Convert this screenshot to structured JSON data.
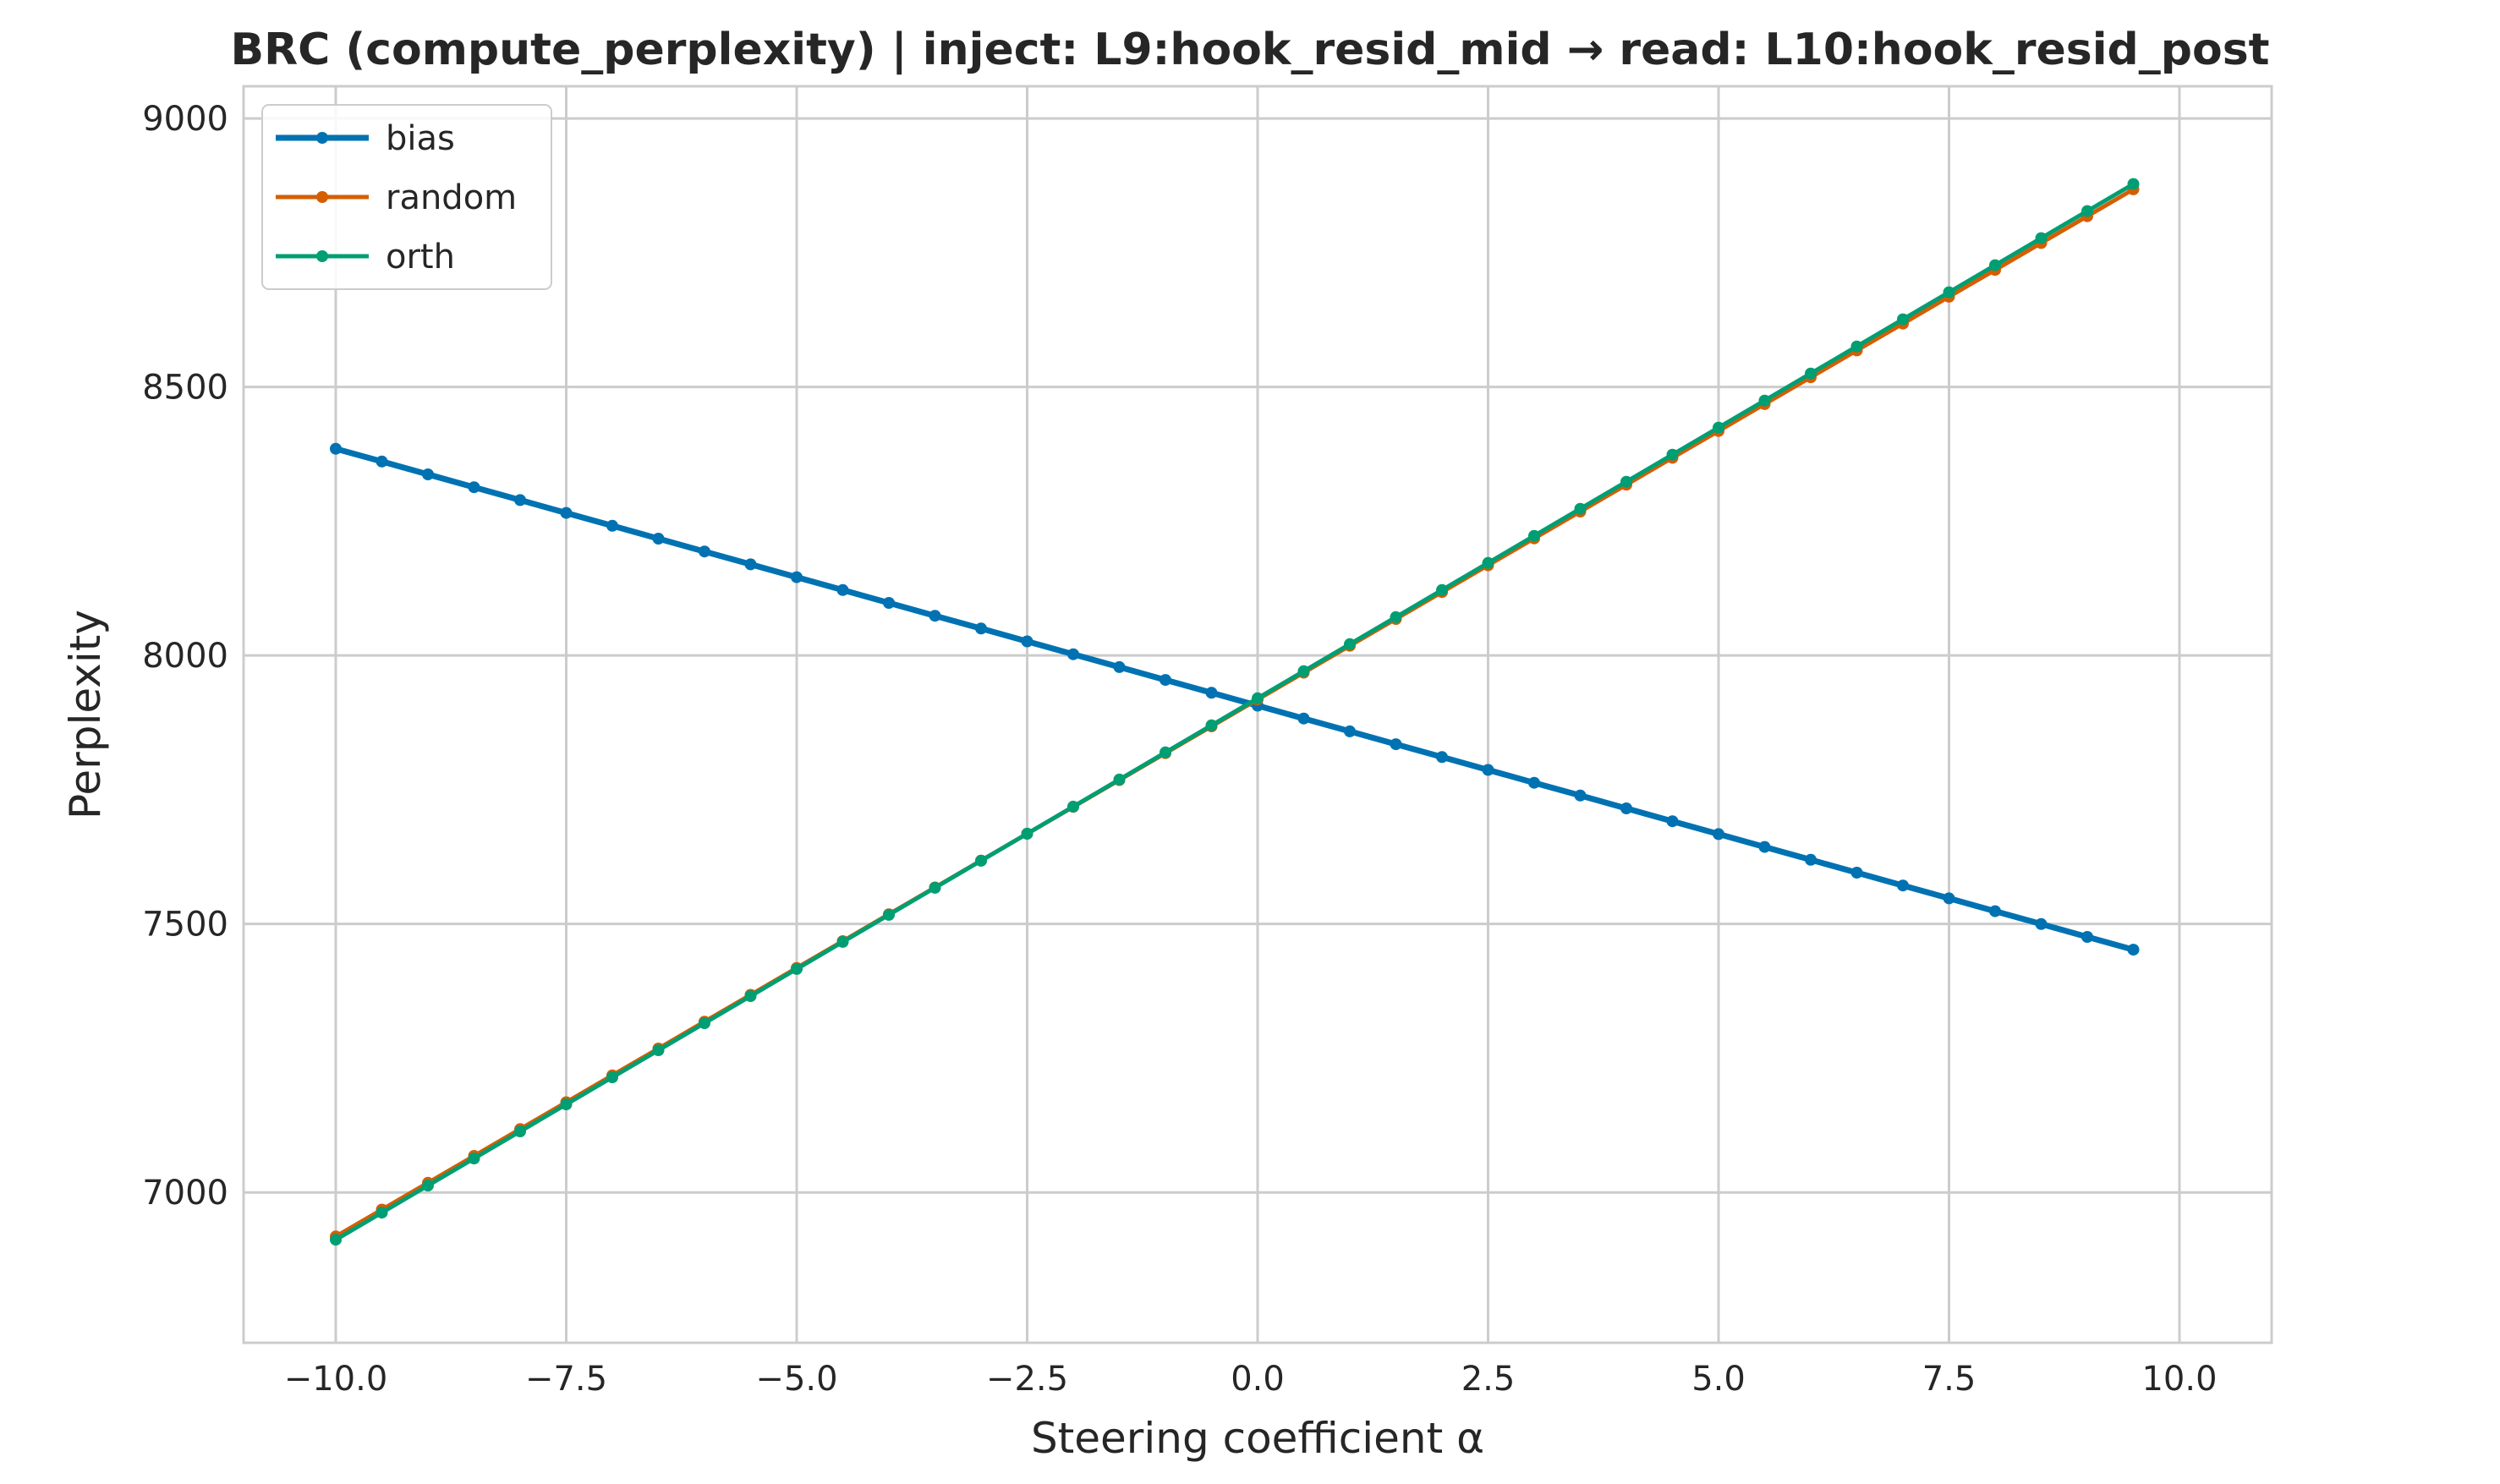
{
  "chart_data": {
    "type": "line",
    "title": "BRC (compute_perplexity) | inject: L9:hook_resid_mid → read: L10:hook_resid_post",
    "xlabel": "Steering coefficient α",
    "ylabel": "Perplexity",
    "xlim": [
      -11,
      11
    ],
    "ylim": [
      6720,
      9060
    ],
    "xticks": [
      -10,
      -7.5,
      -5,
      -2.5,
      0,
      2.5,
      5,
      7.5,
      10
    ],
    "xtick_labels": [
      "−10.0",
      "−7.5",
      "−5.0",
      "−2.5",
      "0.0",
      "2.5",
      "5.0",
      "7.5",
      "10.0"
    ],
    "yticks": [
      7000,
      7500,
      8000,
      8500,
      9000
    ],
    "ytick_labels": [
      "7000",
      "7500",
      "8000",
      "8500",
      "9000"
    ],
    "grid": true,
    "legend_position": "top-left",
    "x": [
      -10,
      -9.5,
      -9,
      -8.5,
      -8,
      -7.5,
      -7,
      -6.5,
      -6,
      -5.5,
      -5,
      -4.5,
      -4,
      -3.5,
      -3,
      -2.5,
      -2,
      -1.5,
      -1,
      -0.5,
      0,
      0.5,
      1,
      1.5,
      2,
      2.5,
      3,
      3.5,
      4,
      4.5,
      5,
      5.5,
      6,
      6.5,
      7,
      7.5,
      8,
      8.5,
      9,
      9.5
    ],
    "series": [
      {
        "name": "bias",
        "color": "#0072B2",
        "start": 8385,
        "end": 7452
      },
      {
        "name": "random",
        "color": "#D55E00",
        "start": 6918,
        "end": 8868
      },
      {
        "name": "orth",
        "color": "#009E73",
        "start": 6912,
        "end": 8878
      }
    ]
  }
}
